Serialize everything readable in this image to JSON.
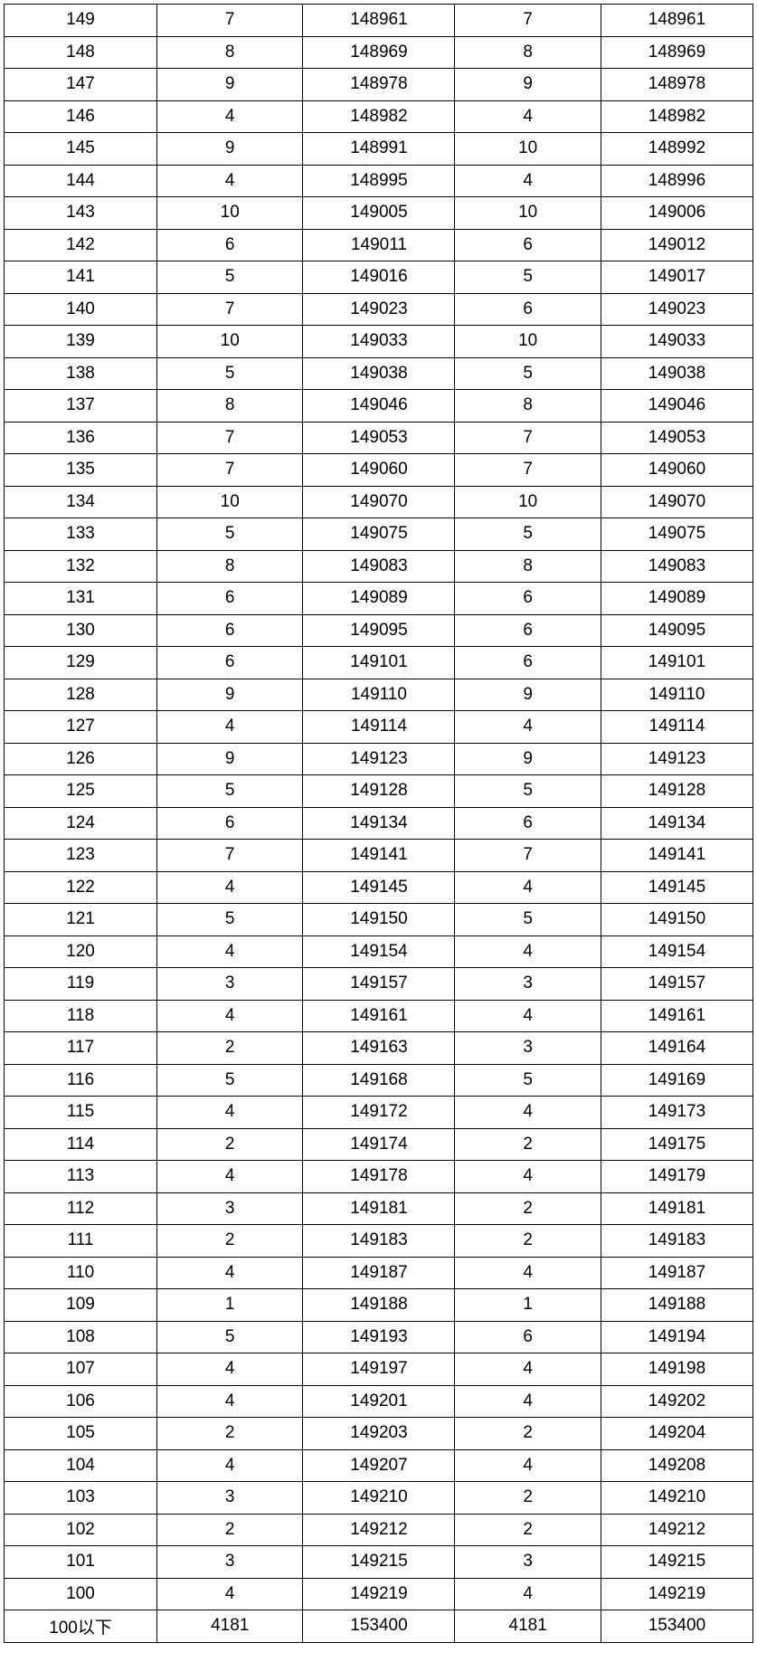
{
  "table": {
    "type": "table",
    "background_color": "#ffffff",
    "border_color": "#000000",
    "text_color": "#000000",
    "font_size": 19,
    "row_height": 35.5,
    "column_widths_pct": [
      17.8,
      17.0,
      17.7,
      17.0,
      17.7
    ],
    "column_align": [
      "center",
      "center",
      "center",
      "center",
      "center"
    ],
    "rows": [
      [
        "149",
        "7",
        "148961",
        "7",
        "148961"
      ],
      [
        "148",
        "8",
        "148969",
        "8",
        "148969"
      ],
      [
        "147",
        "9",
        "148978",
        "9",
        "148978"
      ],
      [
        "146",
        "4",
        "148982",
        "4",
        "148982"
      ],
      [
        "145",
        "9",
        "148991",
        "10",
        "148992"
      ],
      [
        "144",
        "4",
        "148995",
        "4",
        "148996"
      ],
      [
        "143",
        "10",
        "149005",
        "10",
        "149006"
      ],
      [
        "142",
        "6",
        "149011",
        "6",
        "149012"
      ],
      [
        "141",
        "5",
        "149016",
        "5",
        "149017"
      ],
      [
        "140",
        "7",
        "149023",
        "6",
        "149023"
      ],
      [
        "139",
        "10",
        "149033",
        "10",
        "149033"
      ],
      [
        "138",
        "5",
        "149038",
        "5",
        "149038"
      ],
      [
        "137",
        "8",
        "149046",
        "8",
        "149046"
      ],
      [
        "136",
        "7",
        "149053",
        "7",
        "149053"
      ],
      [
        "135",
        "7",
        "149060",
        "7",
        "149060"
      ],
      [
        "134",
        "10",
        "149070",
        "10",
        "149070"
      ],
      [
        "133",
        "5",
        "149075",
        "5",
        "149075"
      ],
      [
        "132",
        "8",
        "149083",
        "8",
        "149083"
      ],
      [
        "131",
        "6",
        "149089",
        "6",
        "149089"
      ],
      [
        "130",
        "6",
        "149095",
        "6",
        "149095"
      ],
      [
        "129",
        "6",
        "149101",
        "6",
        "149101"
      ],
      [
        "128",
        "9",
        "149110",
        "9",
        "149110"
      ],
      [
        "127",
        "4",
        "149114",
        "4",
        "149114"
      ],
      [
        "126",
        "9",
        "149123",
        "9",
        "149123"
      ],
      [
        "125",
        "5",
        "149128",
        "5",
        "149128"
      ],
      [
        "124",
        "6",
        "149134",
        "6",
        "149134"
      ],
      [
        "123",
        "7",
        "149141",
        "7",
        "149141"
      ],
      [
        "122",
        "4",
        "149145",
        "4",
        "149145"
      ],
      [
        "121",
        "5",
        "149150",
        "5",
        "149150"
      ],
      [
        "120",
        "4",
        "149154",
        "4",
        "149154"
      ],
      [
        "119",
        "3",
        "149157",
        "3",
        "149157"
      ],
      [
        "118",
        "4",
        "149161",
        "4",
        "149161"
      ],
      [
        "117",
        "2",
        "149163",
        "3",
        "149164"
      ],
      [
        "116",
        "5",
        "149168",
        "5",
        "149169"
      ],
      [
        "115",
        "4",
        "149172",
        "4",
        "149173"
      ],
      [
        "114",
        "2",
        "149174",
        "2",
        "149175"
      ],
      [
        "113",
        "4",
        "149178",
        "4",
        "149179"
      ],
      [
        "112",
        "3",
        "149181",
        "2",
        "149181"
      ],
      [
        "111",
        "2",
        "149183",
        "2",
        "149183"
      ],
      [
        "110",
        "4",
        "149187",
        "4",
        "149187"
      ],
      [
        "109",
        "1",
        "149188",
        "1",
        "149188"
      ],
      [
        "108",
        "5",
        "149193",
        "6",
        "149194"
      ],
      [
        "107",
        "4",
        "149197",
        "4",
        "149198"
      ],
      [
        "106",
        "4",
        "149201",
        "4",
        "149202"
      ],
      [
        "105",
        "2",
        "149203",
        "2",
        "149204"
      ],
      [
        "104",
        "4",
        "149207",
        "4",
        "149208"
      ],
      [
        "103",
        "3",
        "149210",
        "2",
        "149210"
      ],
      [
        "102",
        "2",
        "149212",
        "2",
        "149212"
      ],
      [
        "101",
        "3",
        "149215",
        "3",
        "149215"
      ],
      [
        "100",
        "4",
        "149219",
        "4",
        "149219"
      ],
      [
        "100以下",
        "4181",
        "153400",
        "4181",
        "153400"
      ]
    ]
  }
}
